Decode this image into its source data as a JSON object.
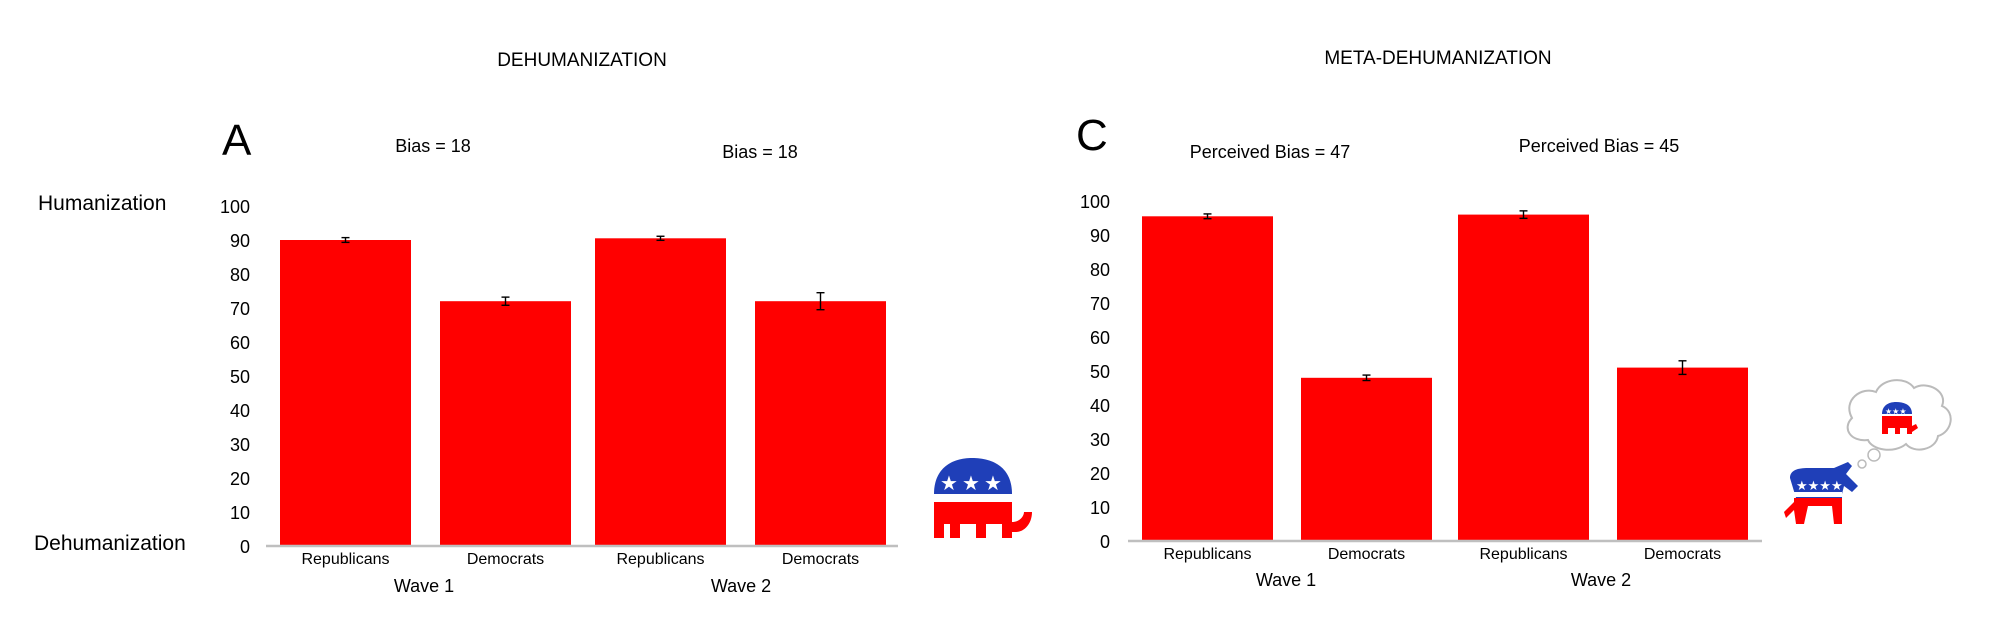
{
  "y_labels": {
    "top": "Humanization",
    "bottom": "Dehumanization"
  },
  "colors": {
    "bar": "#ff0000",
    "axis": "#bfbfbf",
    "error": "#000000"
  },
  "chart_data": [
    {
      "type": "bar",
      "title": "DEHUMANIZATION",
      "panel_letter": "A",
      "ylim": [
        0,
        100
      ],
      "yticks": [
        0,
        10,
        20,
        30,
        40,
        50,
        60,
        70,
        80,
        90,
        100
      ],
      "categories": [
        "Republicans",
        "Democrats",
        "Republicans",
        "Democrats"
      ],
      "groups": [
        "Wave 1",
        "Wave 2"
      ],
      "values": [
        90,
        72,
        90.5,
        72
      ],
      "errors": [
        0.7,
        1.2,
        0.6,
        2.5
      ],
      "annotations": [
        "Bias = 18",
        "Bias = 18"
      ],
      "icons": [
        "republican-elephant-icon"
      ]
    },
    {
      "type": "bar",
      "title": "META-DEHUMANIZATION",
      "panel_letter": "C",
      "ylim": [
        0,
        100
      ],
      "yticks": [
        0,
        10,
        20,
        30,
        40,
        50,
        60,
        70,
        80,
        90,
        100
      ],
      "categories": [
        "Republicans",
        "Democrats",
        "Republicans",
        "Democrats"
      ],
      "groups": [
        "Wave 1",
        "Wave 2"
      ],
      "values": [
        95.5,
        48,
        96,
        51
      ],
      "errors": [
        0.7,
        0.8,
        1.1,
        2.0
      ],
      "annotations": [
        "Perceived Bias = 47",
        "Perceived Bias = 45"
      ],
      "icons": [
        "democrat-donkey-icon",
        "thought-bubble-icon"
      ]
    }
  ]
}
